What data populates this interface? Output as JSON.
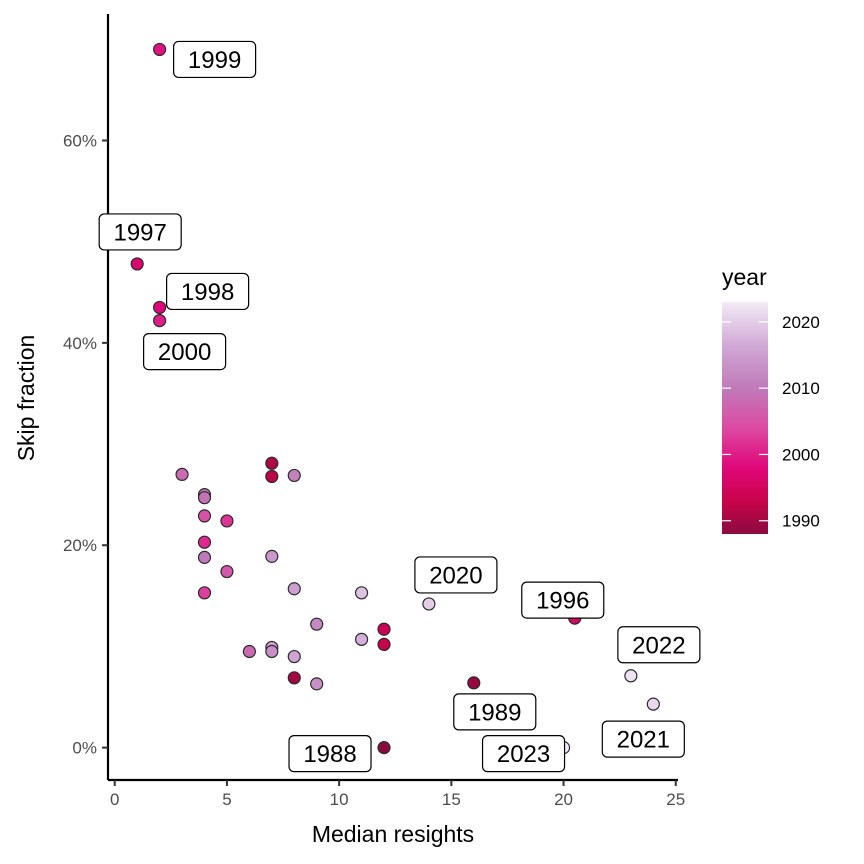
{
  "chart_data": {
    "type": "scatter",
    "xlabel": "Median resights",
    "ylabel": "Skip fraction",
    "xlim": [
      -0.3,
      25.1
    ],
    "ylim": [
      -0.032,
      0.725
    ],
    "x_ticks": [
      0,
      5,
      10,
      15,
      20,
      25
    ],
    "x_tick_labels": [
      "0",
      "5",
      "10",
      "15",
      "20",
      "25"
    ],
    "y_ticks": [
      0,
      0.2,
      0.4,
      0.6
    ],
    "y_tick_labels": [
      "0%",
      "20%",
      "40%",
      "60%"
    ],
    "grid": false,
    "color_scale": {
      "title": "year",
      "min": 1988,
      "max": 2023,
      "ticks": [
        1990,
        2000,
        2010,
        2020
      ],
      "tick_labels": [
        "1990",
        "2000",
        "2010",
        "2020"
      ],
      "stops": [
        {
          "year": 1988,
          "color": "#8b0a3e"
        },
        {
          "year": 1993,
          "color": "#c8044a"
        },
        {
          "year": 1998,
          "color": "#e0077a"
        },
        {
          "year": 2004,
          "color": "#dc4aa3"
        },
        {
          "year": 2010,
          "color": "#c07ab9"
        },
        {
          "year": 2016,
          "color": "#cfa5d4"
        },
        {
          "year": 2023,
          "color": "#f3ebf6"
        }
      ],
      "legend_position": "right"
    },
    "points": [
      {
        "x": 2,
        "y": 0.69,
        "year": 1999,
        "label": "1999"
      },
      {
        "x": 1,
        "y": 0.478,
        "year": 1997,
        "label": "1997"
      },
      {
        "x": 2,
        "y": 0.435,
        "year": 1998,
        "label": "1998"
      },
      {
        "x": 2,
        "y": 0.422,
        "year": 2000,
        "label": "2000"
      },
      {
        "x": 14,
        "y": 0.142,
        "year": 2020,
        "label": "2020"
      },
      {
        "x": 20.5,
        "y": 0.128,
        "year": 1996,
        "label": "1996"
      },
      {
        "x": 23,
        "y": 0.071,
        "year": 2022,
        "label": "2022"
      },
      {
        "x": 16,
        "y": 0.064,
        "year": 1989,
        "label": "1989"
      },
      {
        "x": 24,
        "y": 0.043,
        "year": 2021,
        "label": "2021"
      },
      {
        "x": 12,
        "y": 0.0,
        "year": 1988,
        "label": "1988"
      },
      {
        "x": 20,
        "y": 0.0,
        "year": 2023,
        "label": "2023"
      },
      {
        "x": 3,
        "y": 0.27,
        "year": 2008
      },
      {
        "x": 4,
        "y": 0.25,
        "year": 2010
      },
      {
        "x": 4,
        "y": 0.247,
        "year": 2009
      },
      {
        "x": 4,
        "y": 0.229,
        "year": 2005
      },
      {
        "x": 4,
        "y": 0.203,
        "year": 2001
      },
      {
        "x": 4,
        "y": 0.188,
        "year": 2010
      },
      {
        "x": 4,
        "y": 0.153,
        "year": 2003
      },
      {
        "x": 5,
        "y": 0.224,
        "year": 2002
      },
      {
        "x": 5,
        "y": 0.174,
        "year": 2006
      },
      {
        "x": 6,
        "y": 0.095,
        "year": 2008
      },
      {
        "x": 7,
        "y": 0.281,
        "year": 1991
      },
      {
        "x": 7,
        "y": 0.268,
        "year": 1992
      },
      {
        "x": 7,
        "y": 0.189,
        "year": 2014
      },
      {
        "x": 7,
        "y": 0.099,
        "year": 2015
      },
      {
        "x": 7,
        "y": 0.095,
        "year": 2013
      },
      {
        "x": 8,
        "y": 0.269,
        "year": 2011
      },
      {
        "x": 8,
        "y": 0.157,
        "year": 2015
      },
      {
        "x": 8,
        "y": 0.09,
        "year": 2016
      },
      {
        "x": 8,
        "y": 0.069,
        "year": 1990
      },
      {
        "x": 9,
        "y": 0.122,
        "year": 2012
      },
      {
        "x": 9,
        "y": 0.063,
        "year": 2013
      },
      {
        "x": 11,
        "y": 0.153,
        "year": 2019
      },
      {
        "x": 11,
        "y": 0.107,
        "year": 2017
      },
      {
        "x": 12,
        "y": 0.117,
        "year": 1994
      },
      {
        "x": 12,
        "y": 0.102,
        "year": 1993
      }
    ]
  }
}
